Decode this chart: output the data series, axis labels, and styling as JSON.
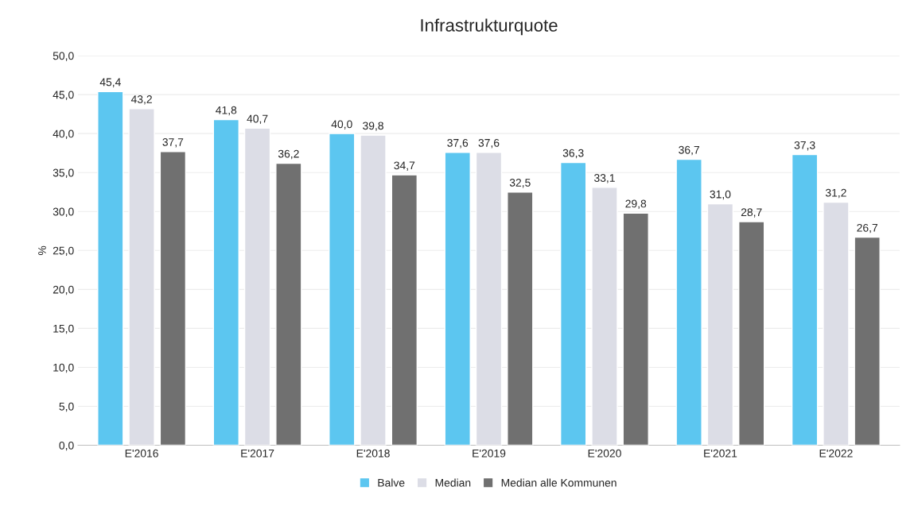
{
  "chart_data": {
    "type": "bar",
    "title": "Infrastrukturquote",
    "ylabel": "%",
    "categories": [
      "E'2016",
      "E'2017",
      "E'2018",
      "E'2019",
      "E'2020",
      "E'2021",
      "E'2022"
    ],
    "series": [
      {
        "name": "Balve",
        "color": "#5cc6f0",
        "values": [
          45.4,
          41.8,
          40.0,
          37.6,
          36.3,
          36.7,
          37.3
        ],
        "value_labels": [
          "45,4",
          "41,8",
          "40,0",
          "37,6",
          "36,3",
          "36,7",
          "37,3"
        ]
      },
      {
        "name": "Median",
        "color": "#dcdde6",
        "values": [
          43.2,
          40.7,
          39.8,
          37.6,
          33.1,
          31.0,
          31.2
        ],
        "value_labels": [
          "43,2",
          "40,7",
          "39,8",
          "37,6",
          "33,1",
          "31,0",
          "31,2"
        ]
      },
      {
        "name": "Median alle Kommunen",
        "color": "#707070",
        "values": [
          37.7,
          36.2,
          34.7,
          32.5,
          29.8,
          28.7,
          26.7
        ],
        "value_labels": [
          "37,7",
          "36,2",
          "34,7",
          "32,5",
          "29,8",
          "28,7",
          "26,7"
        ]
      }
    ],
    "ylim": [
      0,
      50
    ],
    "yticks": [
      {
        "value": 0,
        "label": "0,0"
      },
      {
        "value": 5,
        "label": "5,0"
      },
      {
        "value": 10,
        "label": "10,0"
      },
      {
        "value": 15,
        "label": "15,0"
      },
      {
        "value": 20,
        "label": "20,0"
      },
      {
        "value": 25,
        "label": "25,0"
      },
      {
        "value": 30,
        "label": "30,0"
      },
      {
        "value": 35,
        "label": "35,0"
      },
      {
        "value": 40,
        "label": "40,0"
      },
      {
        "value": 45,
        "label": "45,0"
      },
      {
        "value": 50,
        "label": "50,0"
      }
    ],
    "grid": "y",
    "legend": "bottom"
  }
}
